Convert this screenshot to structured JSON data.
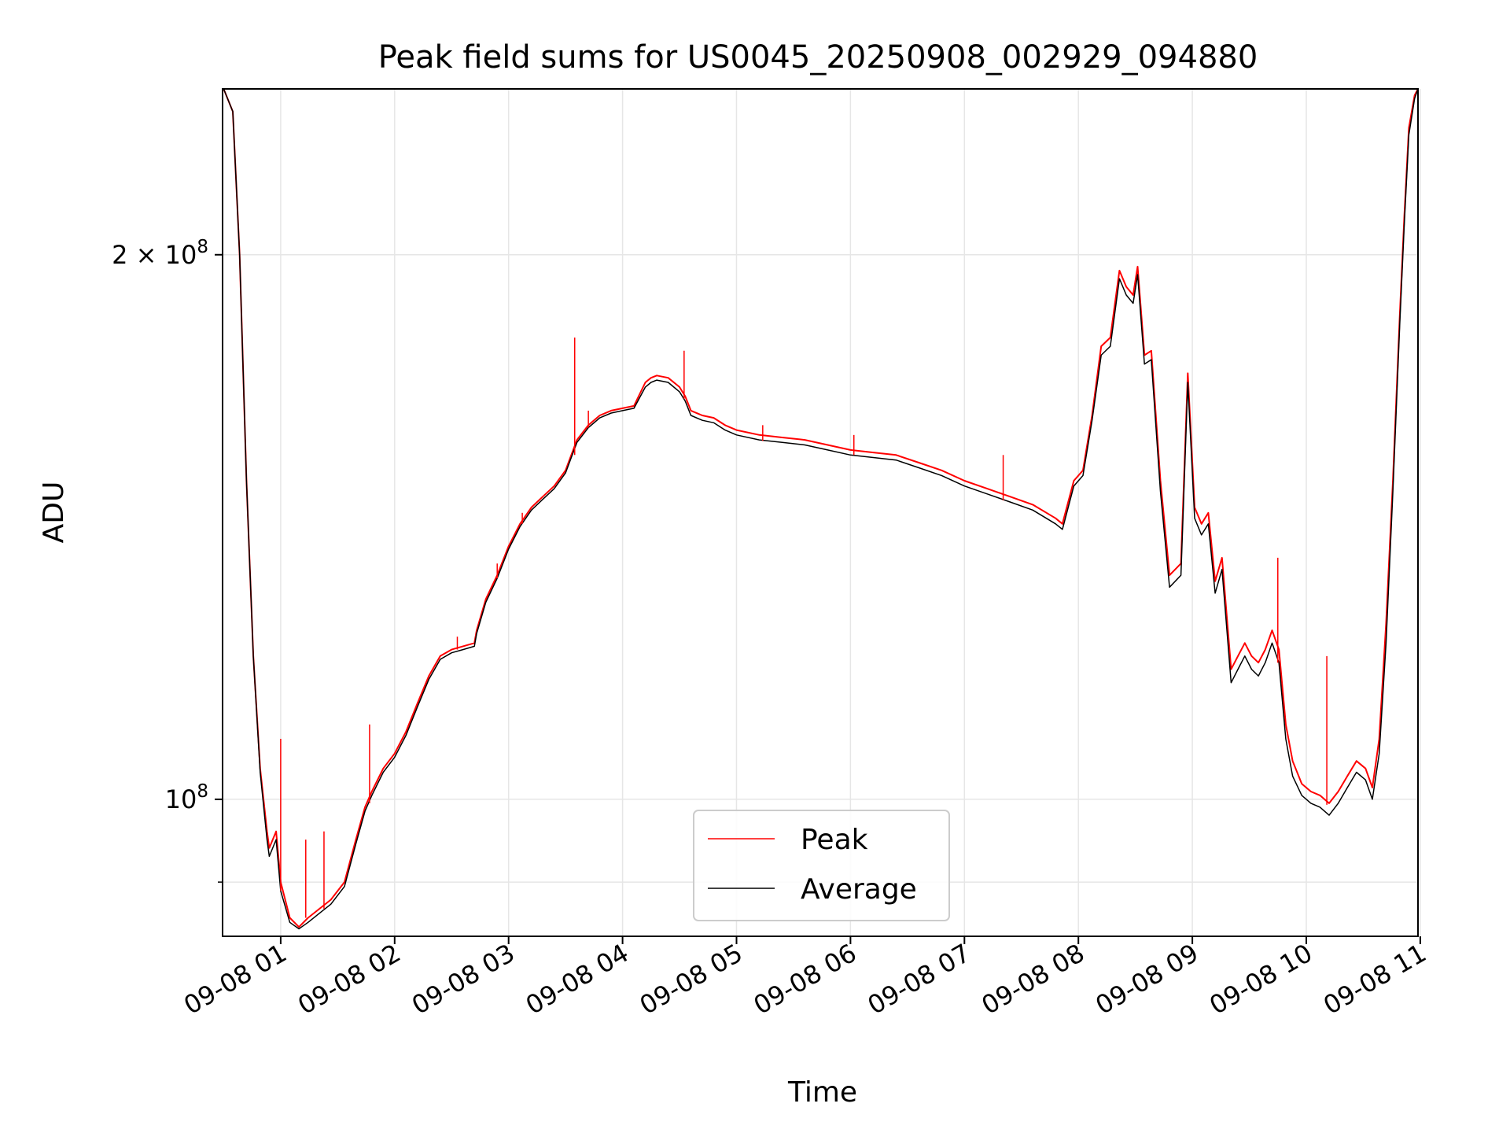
{
  "chart_data": {
    "type": "line",
    "title": "Peak field sums for US0045_20250908_002929_094880",
    "xlabel": "Time",
    "ylabel": "ADU",
    "x_unit": "hour of 2025-09-08",
    "xlim": [
      0.49,
      10.98
    ],
    "ylim": [
      84000000,
      247000000
    ],
    "yscale": "log",
    "grid": true,
    "legend_position": "bottom-center",
    "x_ticks": [
      {
        "value": 1,
        "label": "09-08 01"
      },
      {
        "value": 2,
        "label": "09-08 02"
      },
      {
        "value": 3,
        "label": "09-08 03"
      },
      {
        "value": 4,
        "label": "09-08 04"
      },
      {
        "value": 5,
        "label": "09-08 05"
      },
      {
        "value": 6,
        "label": "09-08 06"
      },
      {
        "value": 7,
        "label": "09-08 07"
      },
      {
        "value": 8,
        "label": "09-08 08"
      },
      {
        "value": 9,
        "label": "09-08 09"
      },
      {
        "value": 10,
        "label": "09-08 10"
      },
      {
        "value": 11,
        "label": "09-08 11"
      }
    ],
    "y_ticks": [
      {
        "value": 100000000,
        "base": "10",
        "exp": "8",
        "mult": ""
      },
      {
        "value": 200000000,
        "base": "10",
        "exp": "8",
        "mult": "2 × "
      }
    ],
    "y_minor_ticks": [
      90000000
    ],
    "series": [
      {
        "name": "Peak",
        "color": "#ff0000",
        "x": [
          0.5,
          0.58,
          0.64,
          0.7,
          0.76,
          0.82,
          0.88,
          0.9,
          0.96,
          1.0,
          1.08,
          1.16,
          1.24,
          1.34,
          1.44,
          1.56,
          1.66,
          1.74,
          1.8,
          1.9,
          2.0,
          2.1,
          2.2,
          2.3,
          2.4,
          2.5,
          2.6,
          2.7,
          2.72,
          2.8,
          2.9,
          3.0,
          3.1,
          3.2,
          3.3,
          3.4,
          3.5,
          3.55,
          3.6,
          3.7,
          3.8,
          3.9,
          4.0,
          4.1,
          4.2,
          4.25,
          4.3,
          4.4,
          4.5,
          4.55,
          4.6,
          4.7,
          4.8,
          4.9,
          5.0,
          5.2,
          5.4,
          5.6,
          5.8,
          6.0,
          6.2,
          6.4,
          6.6,
          6.8,
          7.0,
          7.2,
          7.4,
          7.6,
          7.8,
          7.86,
          7.96,
          8.04,
          8.12,
          8.2,
          8.28,
          8.36,
          8.42,
          8.48,
          8.52,
          8.58,
          8.64,
          8.72,
          8.8,
          8.9,
          8.96,
          9.02,
          9.08,
          9.14,
          9.2,
          9.26,
          9.34,
          9.4,
          9.46,
          9.52,
          9.58,
          9.64,
          9.7,
          9.76,
          9.82,
          9.88,
          9.96,
          10.04,
          10.12,
          10.2,
          10.28,
          10.36,
          10.44,
          10.52,
          10.58,
          10.64,
          10.7,
          10.76,
          10.82,
          10.86,
          10.9,
          10.95,
          10.98
        ],
        "y": [
          247000000,
          240000000,
          200000000,
          150000000,
          120000000,
          104000000,
          96000000,
          94000000,
          96000000,
          90000000,
          86000000,
          85000000,
          86000000,
          87000000,
          88000000,
          90000000,
          95000000,
          99000000,
          101000000,
          104000000,
          106000000,
          109000000,
          113000000,
          117000000,
          120000000,
          121000000,
          121500000,
          122000000,
          124000000,
          129000000,
          133000000,
          138000000,
          142000000,
          145000000,
          147000000,
          149000000,
          152000000,
          155000000,
          158000000,
          161000000,
          163000000,
          164000000,
          164500000,
          165000000,
          170000000,
          171000000,
          171500000,
          171000000,
          169000000,
          167000000,
          164000000,
          163000000,
          162500000,
          161000000,
          160000000,
          159000000,
          158500000,
          158000000,
          157000000,
          156000000,
          155500000,
          155000000,
          153500000,
          152000000,
          150000000,
          148500000,
          147000000,
          145500000,
          143000000,
          142000000,
          150000000,
          152000000,
          163000000,
          178000000,
          180000000,
          196000000,
          192000000,
          190000000,
          197000000,
          176000000,
          177000000,
          150000000,
          133000000,
          135000000,
          172000000,
          145000000,
          142000000,
          144000000,
          132000000,
          136000000,
          118000000,
          120000000,
          122000000,
          120000000,
          119000000,
          121000000,
          124000000,
          121000000,
          110000000,
          105000000,
          102000000,
          101000000,
          100500000,
          99500000,
          101000000,
          103000000,
          105000000,
          104000000,
          101500000,
          108000000,
          125000000,
          150000000,
          185000000,
          210000000,
          235000000,
          245000000,
          247000000
        ]
      },
      {
        "name": "Average",
        "color": "#000000",
        "x": [
          0.5,
          0.58,
          0.64,
          0.7,
          0.76,
          0.82,
          0.88,
          0.9,
          0.96,
          1.0,
          1.08,
          1.16,
          1.24,
          1.34,
          1.44,
          1.56,
          1.66,
          1.74,
          1.8,
          1.9,
          2.0,
          2.1,
          2.2,
          2.3,
          2.4,
          2.5,
          2.6,
          2.7,
          2.72,
          2.8,
          2.9,
          3.0,
          3.1,
          3.2,
          3.3,
          3.4,
          3.5,
          3.55,
          3.6,
          3.7,
          3.8,
          3.9,
          4.0,
          4.1,
          4.2,
          4.25,
          4.3,
          4.4,
          4.5,
          4.55,
          4.6,
          4.7,
          4.8,
          4.9,
          5.0,
          5.2,
          5.4,
          5.6,
          5.8,
          6.0,
          6.2,
          6.4,
          6.6,
          6.8,
          7.0,
          7.2,
          7.4,
          7.6,
          7.8,
          7.86,
          7.96,
          8.04,
          8.12,
          8.2,
          8.28,
          8.36,
          8.42,
          8.48,
          8.52,
          8.58,
          8.64,
          8.72,
          8.8,
          8.9,
          8.96,
          9.02,
          9.08,
          9.14,
          9.2,
          9.26,
          9.34,
          9.4,
          9.46,
          9.52,
          9.58,
          9.64,
          9.7,
          9.76,
          9.82,
          9.88,
          9.96,
          10.04,
          10.12,
          10.2,
          10.28,
          10.36,
          10.44,
          10.52,
          10.58,
          10.64,
          10.7,
          10.76,
          10.82,
          10.86,
          10.9,
          10.95,
          10.98
        ],
        "y": [
          247000000,
          240000000,
          200000000,
          150000000,
          120000000,
          103500000,
          95000000,
          93000000,
          95000000,
          89000000,
          85500000,
          84800000,
          85500000,
          86500000,
          87500000,
          89500000,
          94500000,
          98500000,
          100500000,
          103500000,
          105500000,
          108500000,
          112500000,
          116500000,
          119500000,
          120500000,
          121000000,
          121500000,
          123500000,
          128500000,
          132500000,
          137500000,
          141500000,
          144500000,
          146500000,
          148500000,
          151500000,
          154500000,
          157500000,
          160500000,
          162500000,
          163500000,
          164000000,
          164500000,
          169000000,
          170000000,
          170500000,
          170000000,
          168000000,
          166000000,
          163000000,
          162000000,
          161500000,
          160000000,
          159000000,
          158000000,
          157500000,
          157000000,
          156000000,
          155000000,
          154500000,
          154000000,
          152500000,
          151000000,
          149000000,
          147500000,
          146000000,
          144500000,
          142000000,
          141000000,
          149000000,
          151000000,
          162000000,
          176000000,
          178000000,
          194000000,
          190000000,
          188000000,
          195000000,
          174000000,
          175000000,
          148000000,
          131000000,
          133000000,
          170000000,
          143000000,
          140000000,
          142000000,
          130000000,
          134000000,
          116000000,
          118000000,
          120000000,
          118000000,
          117000000,
          119000000,
          122000000,
          119000000,
          108000000,
          103000000,
          100500000,
          99500000,
          99000000,
          98000000,
          99500000,
          101500000,
          103500000,
          102500000,
          100000000,
          106000000,
          122000000,
          148000000,
          183000000,
          208000000,
          233000000,
          244000000,
          247000000
        ]
      }
    ],
    "peak_spikes": [
      {
        "x": 1.0,
        "y": 108000000,
        "base": 89000000
      },
      {
        "x": 1.22,
        "y": 95000000,
        "base": 86000000
      },
      {
        "x": 1.38,
        "y": 96000000,
        "base": 87000000
      },
      {
        "x": 1.78,
        "y": 110000000,
        "base": 99500000
      },
      {
        "x": 2.55,
        "y": 123000000,
        "base": 121000000
      },
      {
        "x": 2.9,
        "y": 135000000,
        "base": 132500000
      },
      {
        "x": 3.12,
        "y": 144000000,
        "base": 142000000
      },
      {
        "x": 3.58,
        "y": 180000000,
        "base": 155000000
      },
      {
        "x": 3.7,
        "y": 164000000,
        "base": 160500000
      },
      {
        "x": 4.54,
        "y": 177000000,
        "base": 166500000
      },
      {
        "x": 5.23,
        "y": 161000000,
        "base": 157800000
      },
      {
        "x": 6.03,
        "y": 159000000,
        "base": 155000000
      },
      {
        "x": 7.34,
        "y": 155000000,
        "base": 146300000
      },
      {
        "x": 9.75,
        "y": 136000000,
        "base": 119000000
      },
      {
        "x": 10.18,
        "y": 120000000,
        "base": 99300000
      }
    ]
  }
}
